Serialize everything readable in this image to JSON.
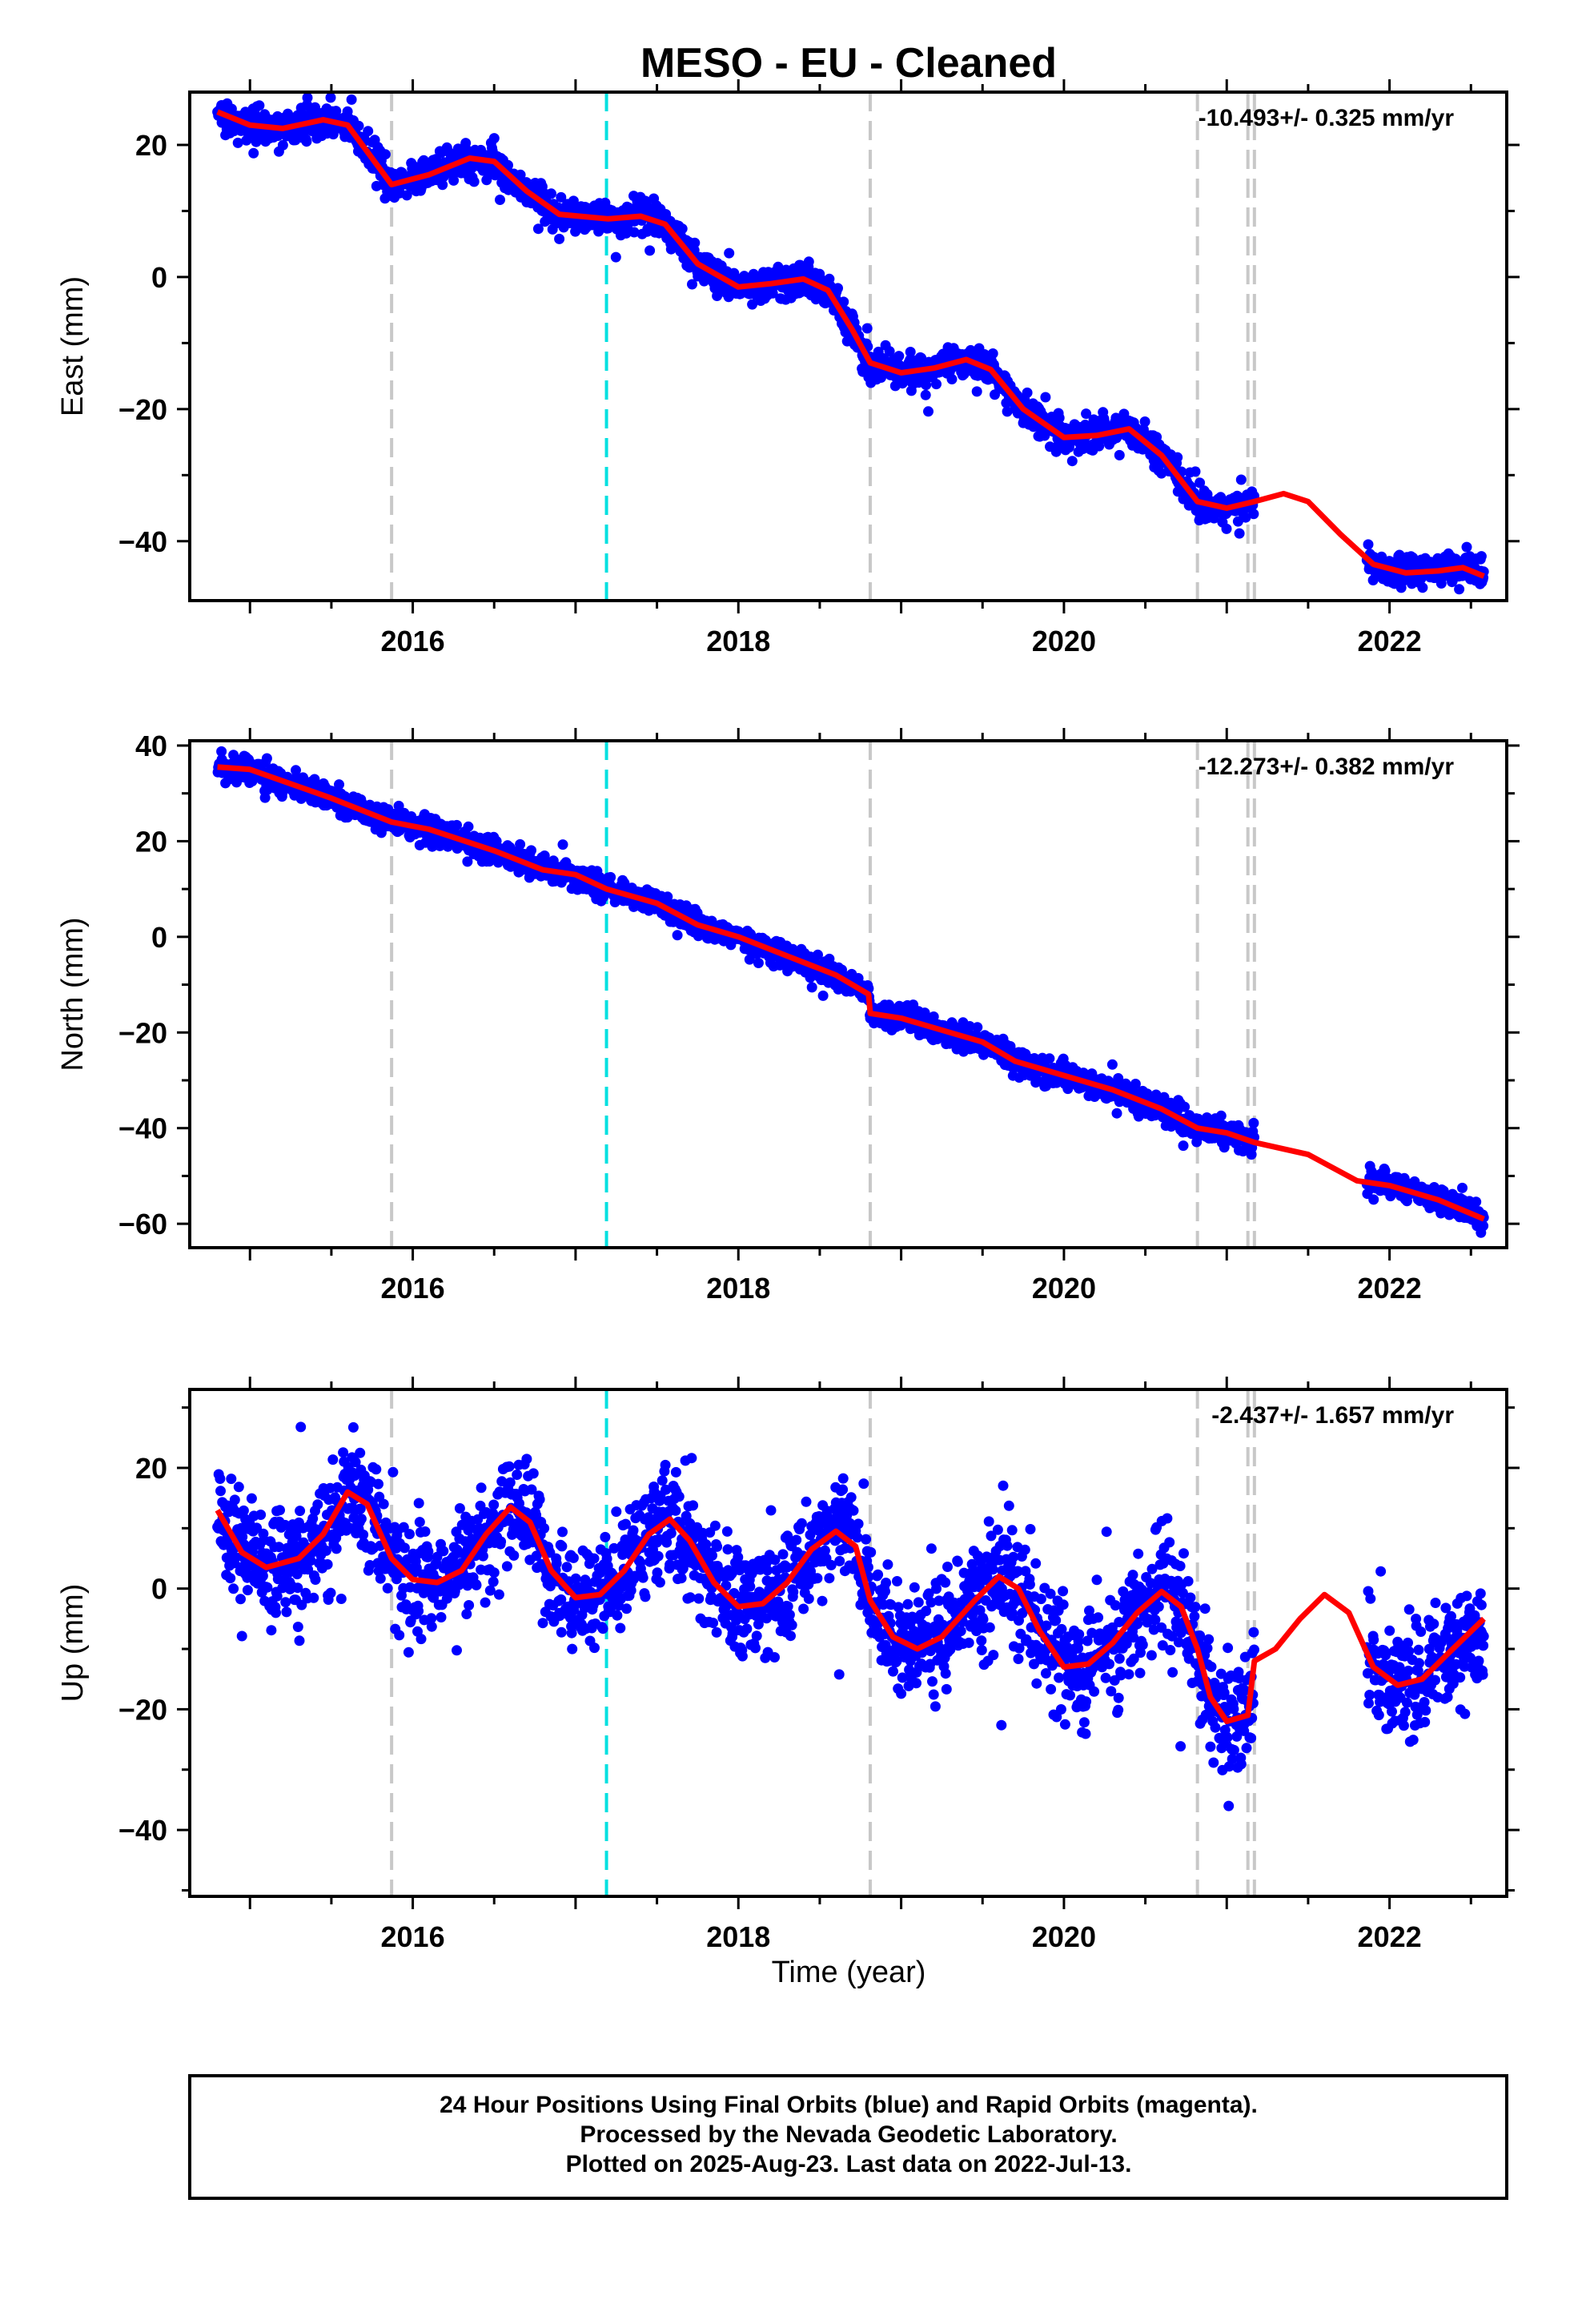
{
  "title": "MESO  - EU - Cleaned",
  "xlabel": "Time (year)",
  "footer": {
    "line1": "24 Hour Positions Using Final Orbits (blue) and Rapid Orbits (magenta).",
    "line2": "Processed by the Nevada Geodetic Laboratory.",
    "line3": "Plotted on 2025-Aug-23. Last data on 2022-Jul-13."
  },
  "colors": {
    "points": "#0000ff",
    "fit": "#ff0000",
    "offset_line": "#c8c8c8",
    "equipment_line": "#00e0e0",
    "frame": "#000000"
  },
  "chart_data": [
    {
      "type": "scatter",
      "id": "east",
      "ylabel": "East (mm)",
      "rate_text": "-10.493+/- 0.325 mm/yr",
      "xlim": [
        2014.63,
        2022.72
      ],
      "ylim": [
        -49,
        28
      ],
      "xticks": [
        2016,
        2018,
        2020,
        2022
      ],
      "yticks": [
        20,
        0,
        -20,
        -40
      ],
      "offset_lines": [
        2015.87,
        2018.81,
        2020.82,
        2021.13,
        2021.17
      ],
      "equipment_lines": [
        2017.19
      ],
      "gaps": [
        [
          2021.17,
          2021.86
        ]
      ],
      "noise": 1.2,
      "fit": [
        [
          2014.8,
          25
        ],
        [
          2015.0,
          23
        ],
        [
          2015.2,
          22.5
        ],
        [
          2015.45,
          23.8
        ],
        [
          2015.6,
          23
        ],
        [
          2015.75,
          18
        ],
        [
          2015.87,
          14
        ],
        [
          2016.1,
          15.5
        ],
        [
          2016.35,
          18
        ],
        [
          2016.5,
          17.5
        ],
        [
          2016.7,
          13
        ],
        [
          2016.9,
          9.5
        ],
        [
          2017.2,
          8.8
        ],
        [
          2017.4,
          9.2
        ],
        [
          2017.55,
          8
        ],
        [
          2017.75,
          2
        ],
        [
          2018.0,
          -1.5
        ],
        [
          2018.2,
          -1
        ],
        [
          2018.4,
          -0.3
        ],
        [
          2018.55,
          -2
        ],
        [
          2018.7,
          -8
        ],
        [
          2018.81,
          -13
        ],
        [
          2019.0,
          -14.5
        ],
        [
          2019.2,
          -13.8
        ],
        [
          2019.4,
          -12.5
        ],
        [
          2019.55,
          -14
        ],
        [
          2019.75,
          -20
        ],
        [
          2020.0,
          -24.3
        ],
        [
          2020.2,
          -24
        ],
        [
          2020.4,
          -23
        ],
        [
          2020.6,
          -27
        ],
        [
          2020.82,
          -34
        ],
        [
          2021.0,
          -35
        ],
        [
          2021.17,
          -34
        ],
        [
          2021.35,
          -32.8
        ],
        [
          2021.5,
          -34
        ],
        [
          2021.7,
          -39
        ],
        [
          2021.9,
          -43.5
        ],
        [
          2022.1,
          -44.8
        ],
        [
          2022.3,
          -44.5
        ],
        [
          2022.45,
          -44
        ],
        [
          2022.58,
          -45.3
        ]
      ]
    },
    {
      "type": "scatter",
      "id": "north",
      "ylabel": "North (mm)",
      "rate_text": "-12.273+/- 0.382 mm/yr",
      "xlim": [
        2014.63,
        2022.72
      ],
      "ylim": [
        -65,
        41
      ],
      "xticks": [
        2016,
        2018,
        2020,
        2022
      ],
      "yticks": [
        40,
        20,
        0,
        -20,
        -40,
        -60
      ],
      "offset_lines": [
        2015.87,
        2018.81,
        2020.82,
        2021.13,
        2021.17
      ],
      "equipment_lines": [
        2017.19
      ],
      "gaps": [
        [
          2021.17,
          2021.86
        ]
      ],
      "noise": 1.3,
      "fit": [
        [
          2014.8,
          35.5
        ],
        [
          2015.0,
          35
        ],
        [
          2015.5,
          29
        ],
        [
          2015.87,
          24
        ],
        [
          2016.1,
          22.5
        ],
        [
          2016.5,
          18
        ],
        [
          2016.8,
          14
        ],
        [
          2017.0,
          13
        ],
        [
          2017.19,
          10
        ],
        [
          2017.5,
          7
        ],
        [
          2017.75,
          2.5
        ],
        [
          2018.0,
          0
        ],
        [
          2018.3,
          -4
        ],
        [
          2018.6,
          -8
        ],
        [
          2018.8,
          -12
        ],
        [
          2018.81,
          -16
        ],
        [
          2019.0,
          -17
        ],
        [
          2019.3,
          -20
        ],
        [
          2019.5,
          -22
        ],
        [
          2019.7,
          -26
        ],
        [
          2020.0,
          -29
        ],
        [
          2020.3,
          -32
        ],
        [
          2020.6,
          -36
        ],
        [
          2020.82,
          -40
        ],
        [
          2021.0,
          -41
        ],
        [
          2021.17,
          -43
        ],
        [
          2021.5,
          -45.5
        ],
        [
          2021.8,
          -51
        ],
        [
          2022.0,
          -52
        ],
        [
          2022.3,
          -55
        ],
        [
          2022.58,
          -59
        ]
      ]
    },
    {
      "type": "scatter",
      "id": "up",
      "ylabel": "Up (mm)",
      "rate_text": "-2.437+/- 1.657 mm/yr",
      "xlim": [
        2014.63,
        2022.72
      ],
      "ylim": [
        -51,
        33
      ],
      "xticks": [
        2016,
        2018,
        2020,
        2022
      ],
      "yticks": [
        20,
        0,
        -20,
        -40
      ],
      "offset_lines": [
        2015.87,
        2018.81,
        2020.82,
        2021.13,
        2021.17
      ],
      "equipment_lines": [
        2017.19
      ],
      "gaps": [
        [
          2021.17,
          2021.86
        ]
      ],
      "noise": 4.5,
      "fit": [
        [
          2014.8,
          13
        ],
        [
          2014.95,
          6
        ],
        [
          2015.1,
          3.5
        ],
        [
          2015.3,
          5
        ],
        [
          2015.45,
          9
        ],
        [
          2015.6,
          16
        ],
        [
          2015.72,
          14
        ],
        [
          2015.87,
          5
        ],
        [
          2016.0,
          1.5
        ],
        [
          2016.15,
          1
        ],
        [
          2016.3,
          3
        ],
        [
          2016.45,
          9
        ],
        [
          2016.6,
          13.5
        ],
        [
          2016.72,
          11
        ],
        [
          2016.85,
          3
        ],
        [
          2017.0,
          -1.5
        ],
        [
          2017.15,
          -1
        ],
        [
          2017.3,
          3
        ],
        [
          2017.45,
          9
        ],
        [
          2017.58,
          11.5
        ],
        [
          2017.7,
          8
        ],
        [
          2017.85,
          1
        ],
        [
          2018.0,
          -3
        ],
        [
          2018.15,
          -2.5
        ],
        [
          2018.3,
          1
        ],
        [
          2018.45,
          6.5
        ],
        [
          2018.6,
          9.5
        ],
        [
          2018.72,
          7
        ],
        [
          2018.81,
          -2
        ],
        [
          2018.95,
          -8
        ],
        [
          2019.1,
          -10
        ],
        [
          2019.25,
          -8
        ],
        [
          2019.45,
          -2
        ],
        [
          2019.6,
          2
        ],
        [
          2019.72,
          0
        ],
        [
          2019.85,
          -7
        ],
        [
          2020.0,
          -13
        ],
        [
          2020.15,
          -12.5
        ],
        [
          2020.3,
          -9
        ],
        [
          2020.45,
          -4
        ],
        [
          2020.6,
          -0.5
        ],
        [
          2020.72,
          -3
        ],
        [
          2020.82,
          -10
        ],
        [
          2020.9,
          -18
        ],
        [
          2021.0,
          -22
        ],
        [
          2021.13,
          -21
        ],
        [
          2021.17,
          -12
        ],
        [
          2021.3,
          -10
        ],
        [
          2021.45,
          -5
        ],
        [
          2021.6,
          -1
        ],
        [
          2021.75,
          -4
        ],
        [
          2021.9,
          -13
        ],
        [
          2022.05,
          -16
        ],
        [
          2022.2,
          -15
        ],
        [
          2022.35,
          -11
        ],
        [
          2022.58,
          -5
        ]
      ]
    }
  ]
}
